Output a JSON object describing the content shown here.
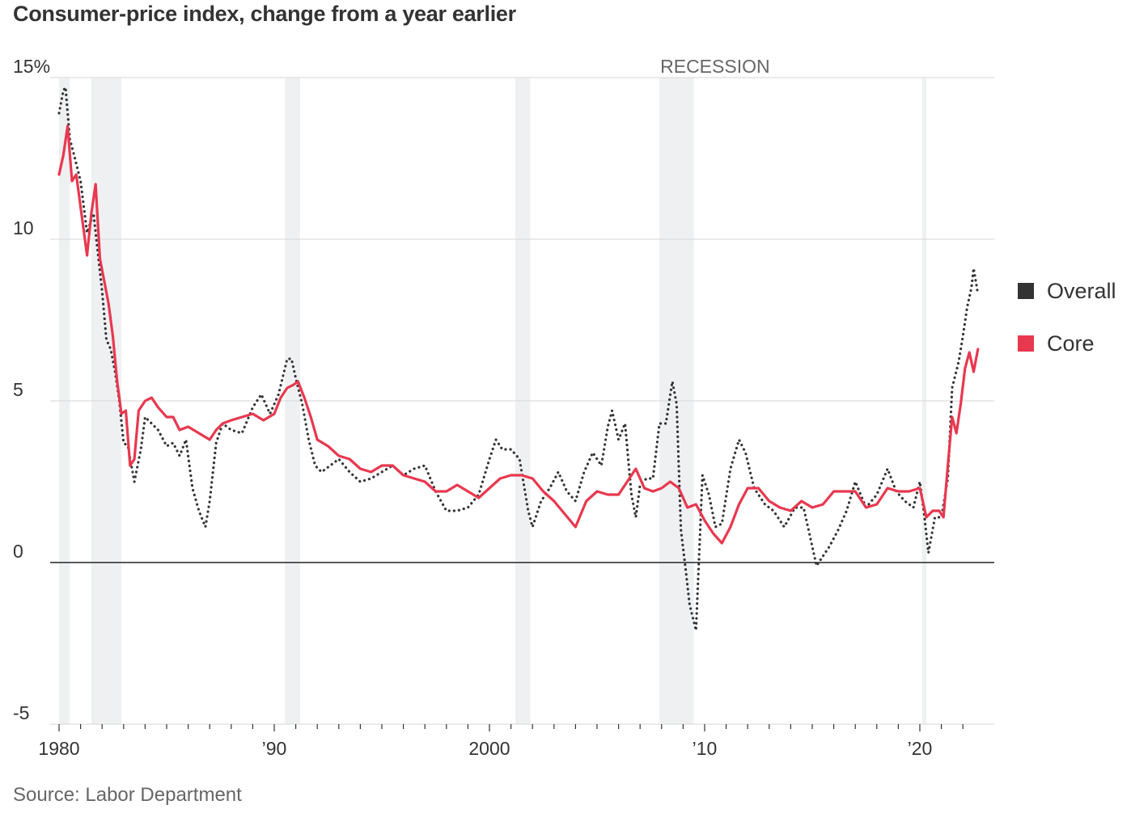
{
  "title": "Consumer-price index, change from a year earlier",
  "source": "Source: Labor Department",
  "legend": [
    {
      "name": "Overall",
      "color": "#333333"
    },
    {
      "name": "Core",
      "color": "#e8384f"
    }
  ],
  "chart_data": {
    "type": "line",
    "title": "Consumer-price index, change from a year earlier",
    "xlabel": "",
    "ylabel": "",
    "xlim": [
      1980,
      2023.3
    ],
    "ylim": [
      -5,
      15
    ],
    "y_ticks": [
      {
        "value": 15,
        "label": "15%"
      },
      {
        "value": 10,
        "label": "10"
      },
      {
        "value": 5,
        "label": "5"
      },
      {
        "value": 0,
        "label": "0"
      },
      {
        "value": -5,
        "label": "-5"
      }
    ],
    "x_ticks": [
      {
        "value": 1980,
        "label": "1980"
      },
      {
        "value": 1990,
        "label": "’90"
      },
      {
        "value": 2000,
        "label": "2000"
      },
      {
        "value": 2010,
        "label": "’10"
      },
      {
        "value": 2020,
        "label": "’20"
      }
    ],
    "grid": true,
    "legend_position": "right",
    "recession_label": "RECESSION",
    "recessions": [
      [
        1980.0,
        1980.5
      ],
      [
        1981.5,
        1982.9
      ],
      [
        1990.5,
        1991.2
      ],
      [
        2001.2,
        2001.9
      ],
      [
        2007.9,
        2009.5
      ],
      [
        2020.1,
        2020.3
      ]
    ],
    "series": [
      {
        "name": "Overall",
        "color": "#333333",
        "style": "dotted",
        "x": [
          1980.0,
          1980.2,
          1980.3,
          1980.5,
          1980.7,
          1981.0,
          1981.3,
          1981.6,
          1981.8,
          1982.0,
          1982.2,
          1982.4,
          1982.6,
          1982.8,
          1983.0,
          1983.2,
          1983.5,
          1983.8,
          1984.0,
          1984.3,
          1984.6,
          1985.0,
          1985.3,
          1985.6,
          1985.9,
          1986.2,
          1986.5,
          1986.8,
          1987.0,
          1987.3,
          1987.6,
          1988.0,
          1988.5,
          1989.0,
          1989.4,
          1989.8,
          1990.2,
          1990.6,
          1990.8,
          1991.0,
          1991.3,
          1991.6,
          1991.9,
          1992.2,
          1992.6,
          1993.0,
          1993.5,
          1994.0,
          1994.5,
          1995.0,
          1995.5,
          1996.0,
          1996.5,
          1997.0,
          1997.5,
          1998.0,
          1998.5,
          1999.0,
          1999.5,
          2000.0,
          2000.3,
          2000.6,
          2001.0,
          2001.4,
          2001.8,
          2002.0,
          2002.4,
          2002.8,
          2003.2,
          2003.6,
          2004.0,
          2004.4,
          2004.8,
          2005.2,
          2005.5,
          2005.7,
          2006.0,
          2006.3,
          2006.6,
          2006.8,
          2007.0,
          2007.3,
          2007.6,
          2007.9,
          2008.2,
          2008.5,
          2008.7,
          2008.9,
          2009.1,
          2009.3,
          2009.6,
          2009.9,
          2010.2,
          2010.5,
          2010.8,
          2011.2,
          2011.6,
          2011.9,
          2012.3,
          2012.8,
          2013.2,
          2013.7,
          2014.2,
          2014.6,
          2014.9,
          2015.2,
          2015.5,
          2015.8,
          2016.2,
          2016.6,
          2017.0,
          2017.5,
          2018.0,
          2018.5,
          2018.9,
          2019.3,
          2019.7,
          2020.0,
          2020.2,
          2020.4,
          2020.7,
          2021.0,
          2021.3,
          2021.5,
          2021.8,
          2022.0,
          2022.2,
          2022.4,
          2022.5,
          2022.7
        ],
        "y": [
          13.9,
          14.6,
          14.7,
          13.1,
          12.6,
          11.8,
          10.2,
          10.8,
          9.6,
          8.4,
          6.9,
          6.6,
          5.9,
          5.0,
          3.7,
          3.6,
          2.5,
          3.5,
          4.5,
          4.3,
          4.1,
          3.6,
          3.7,
          3.3,
          3.8,
          2.3,
          1.6,
          1.1,
          1.9,
          3.7,
          4.3,
          4.1,
          4.0,
          4.8,
          5.2,
          4.6,
          5.2,
          6.3,
          6.3,
          5.7,
          4.9,
          3.8,
          3.0,
          2.8,
          3.0,
          3.2,
          2.8,
          2.5,
          2.6,
          2.8,
          3.0,
          2.7,
          2.9,
          3.0,
          2.2,
          1.6,
          1.6,
          1.7,
          2.1,
          3.2,
          3.8,
          3.5,
          3.5,
          3.2,
          1.6,
          1.1,
          1.9,
          2.3,
          2.8,
          2.2,
          1.9,
          2.8,
          3.4,
          3.0,
          4.2,
          4.7,
          3.8,
          4.3,
          2.1,
          1.4,
          2.4,
          2.6,
          2.6,
          4.3,
          4.3,
          5.6,
          4.9,
          1.0,
          -0.1,
          -1.3,
          -2.1,
          2.7,
          2.1,
          1.1,
          1.2,
          2.9,
          3.8,
          3.4,
          2.3,
          1.8,
          1.6,
          1.1,
          1.7,
          1.7,
          0.8,
          -0.1,
          0.2,
          0.5,
          1.0,
          1.6,
          2.5,
          1.7,
          2.1,
          2.9,
          2.2,
          1.9,
          1.7,
          2.5,
          1.5,
          0.3,
          1.4,
          1.4,
          2.6,
          5.4,
          6.2,
          7.0,
          7.9,
          8.5,
          9.1,
          8.3
        ]
      },
      {
        "name": "Core",
        "color": "#e8384f",
        "style": "solid",
        "x": [
          1980.0,
          1980.2,
          1980.4,
          1980.6,
          1980.8,
          1981.0,
          1981.3,
          1981.5,
          1981.7,
          1981.9,
          1982.1,
          1982.3,
          1982.5,
          1982.7,
          1982.9,
          1983.1,
          1983.3,
          1983.5,
          1983.7,
          1984.0,
          1984.3,
          1984.6,
          1985.0,
          1985.3,
          1985.6,
          1986.0,
          1986.5,
          1987.0,
          1987.3,
          1987.6,
          1988.0,
          1988.5,
          1989.0,
          1989.5,
          1990.0,
          1990.3,
          1990.6,
          1990.9,
          1991.1,
          1991.4,
          1991.7,
          1992.0,
          1992.5,
          1993.0,
          1993.5,
          1994.0,
          1994.5,
          1995.0,
          1995.5,
          1996.0,
          1996.5,
          1997.0,
          1997.5,
          1998.0,
          1998.5,
          1999.0,
          1999.5,
          2000.0,
          2000.5,
          2001.0,
          2001.5,
          2002.0,
          2002.5,
          2003.0,
          2003.5,
          2004.0,
          2004.5,
          2005.0,
          2005.5,
          2006.0,
          2006.5,
          2006.8,
          2007.2,
          2007.6,
          2008.0,
          2008.4,
          2008.8,
          2009.2,
          2009.6,
          2010.0,
          2010.4,
          2010.8,
          2011.2,
          2011.6,
          2012.0,
          2012.5,
          2013.0,
          2013.5,
          2014.0,
          2014.5,
          2015.0,
          2015.5,
          2016.0,
          2016.5,
          2017.0,
          2017.5,
          2018.0,
          2018.5,
          2019.0,
          2019.5,
          2020.0,
          2020.3,
          2020.6,
          2020.9,
          2021.1,
          2021.3,
          2021.5,
          2021.7,
          2021.9,
          2022.1,
          2022.3,
          2022.5,
          2022.7
        ],
        "y": [
          12.0,
          12.6,
          13.5,
          11.8,
          12.0,
          11.0,
          9.5,
          10.8,
          11.7,
          9.4,
          8.7,
          8.0,
          7.0,
          5.6,
          4.6,
          4.7,
          3.0,
          3.2,
          4.7,
          5.0,
          5.1,
          4.8,
          4.5,
          4.5,
          4.1,
          4.2,
          4.0,
          3.8,
          4.1,
          4.3,
          4.4,
          4.5,
          4.6,
          4.4,
          4.6,
          5.1,
          5.4,
          5.5,
          5.6,
          5.1,
          4.5,
          3.8,
          3.6,
          3.3,
          3.2,
          2.9,
          2.8,
          3.0,
          3.0,
          2.7,
          2.6,
          2.5,
          2.2,
          2.2,
          2.4,
          2.2,
          2.0,
          2.3,
          2.6,
          2.7,
          2.7,
          2.6,
          2.2,
          1.9,
          1.5,
          1.1,
          1.9,
          2.2,
          2.1,
          2.1,
          2.6,
          2.9,
          2.3,
          2.2,
          2.3,
          2.5,
          2.3,
          1.7,
          1.8,
          1.3,
          0.9,
          0.6,
          1.1,
          1.8,
          2.3,
          2.3,
          1.9,
          1.7,
          1.6,
          1.9,
          1.7,
          1.8,
          2.2,
          2.2,
          2.2,
          1.7,
          1.8,
          2.3,
          2.2,
          2.2,
          2.3,
          1.4,
          1.6,
          1.6,
          1.4,
          3.0,
          4.5,
          4.0,
          4.9,
          6.0,
          6.5,
          5.9,
          6.6
        ]
      }
    ]
  }
}
